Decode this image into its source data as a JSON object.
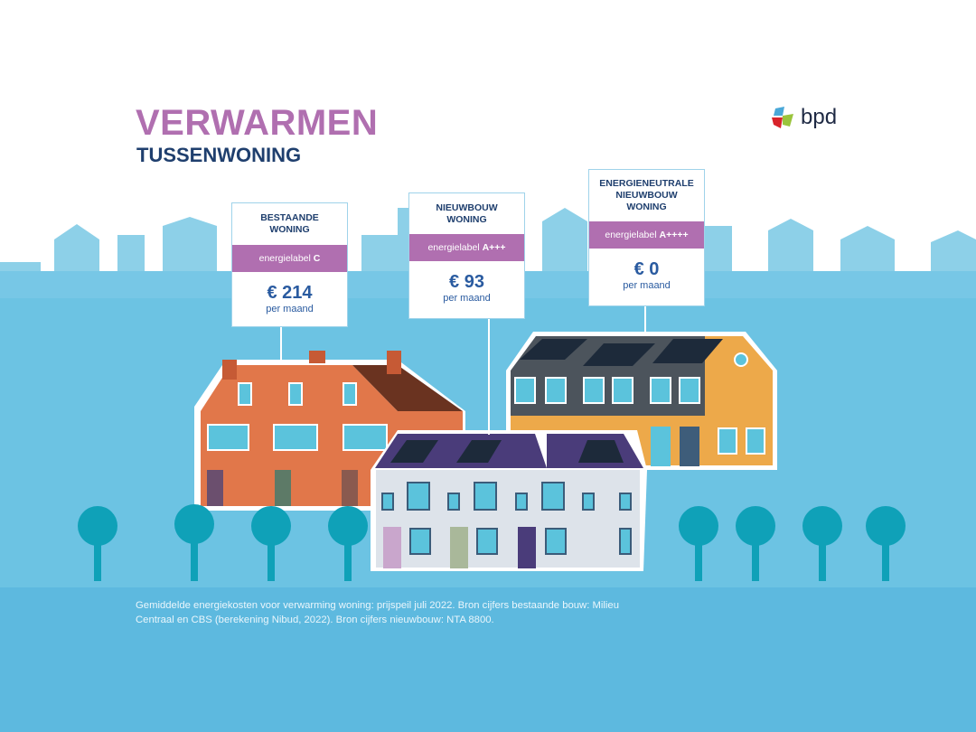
{
  "header": {
    "title": "VERWARMEN",
    "subtitle": "TUSSENWONING",
    "logo_text": "bpd"
  },
  "cards": [
    {
      "title_lines": [
        "BESTAANDE",
        "WONING"
      ],
      "label_prefix": "energielabel ",
      "label_value": "C",
      "price": "€ 214",
      "unit": "per maand"
    },
    {
      "title_lines": [
        "NIEUWBOUW",
        "WONING"
      ],
      "label_prefix": "energielabel ",
      "label_value": "A+++",
      "price": "€ 93",
      "unit": "per maand"
    },
    {
      "title_lines": [
        "ENERGIENEUTRALE",
        "NIEUWBOUW",
        "WONING"
      ],
      "label_prefix": "energielabel ",
      "label_value": "A++++",
      "price": "€ 0",
      "unit": "per maand"
    }
  ],
  "footnote": "Gemiddelde energiekosten voor verwarming woning: prijspeil juli 2022. Bron cijfers bestaande bouw: Milieu Centraal en CBS (berekening Nibud, 2022). Bron cijfers nieuwbouw: NTA 8800.",
  "colors": {
    "accent_purple": "#b06fb0",
    "navy": "#1f3f6e",
    "sky": "#6cc3e3",
    "ground": "#5db9df"
  }
}
